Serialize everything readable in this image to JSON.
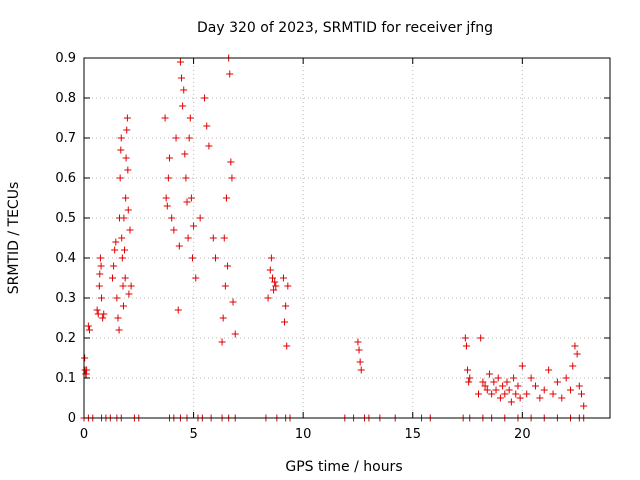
{
  "chart_data": {
    "type": "scatter",
    "title": "Day 320 of 2023, SRMTID for receiver jfng",
    "xlabel": "GPS time / hours",
    "ylabel": "SRMTID / TECUs",
    "xlim": [
      0,
      24
    ],
    "ylim": [
      0,
      0.9
    ],
    "xticks": [
      0,
      5,
      10,
      15,
      20
    ],
    "xtick_labels": [
      "0",
      "5",
      "10",
      "15",
      "20"
    ],
    "yticks": [
      0,
      0.1,
      0.2,
      0.3,
      0.4,
      0.5,
      0.6,
      0.7,
      0.8,
      0.9
    ],
    "ytick_labels": [
      "0",
      "0.1",
      "0.2",
      "0.3",
      "0.4",
      "0.5",
      "0.6",
      "0.7",
      "0.8",
      "0.9"
    ],
    "grid": true,
    "marker": "+",
    "marker_color": "#e00000",
    "series": [
      {
        "name": "SRMTID",
        "x": [
          0.03,
          0.05,
          0.08,
          0.1,
          0.12,
          0.2,
          0.25,
          0.6,
          0.65,
          0.7,
          0.72,
          0.75,
          0.78,
          0.8,
          0.85,
          0.9,
          1.3,
          1.35,
          1.4,
          1.45,
          1.5,
          1.55,
          1.6,
          1.62,
          1.65,
          1.68,
          1.7,
          1.72,
          1.75,
          1.78,
          1.8,
          1.82,
          1.85,
          1.88,
          1.9,
          1.92,
          1.95,
          1.98,
          2.0,
          2.02,
          2.05,
          2.1,
          2.15,
          3.7,
          3.75,
          3.8,
          3.85,
          3.9,
          4.0,
          4.1,
          4.2,
          4.3,
          4.35,
          4.4,
          4.45,
          4.5,
          4.55,
          4.6,
          4.65,
          4.7,
          4.75,
          4.8,
          4.85,
          4.9,
          4.95,
          5.0,
          5.1,
          5.3,
          5.5,
          5.6,
          5.7,
          5.9,
          6.0,
          6.3,
          6.35,
          6.4,
          6.45,
          6.5,
          6.55,
          6.6,
          6.65,
          6.7,
          6.75,
          6.8,
          6.9,
          8.4,
          8.5,
          8.55,
          8.6,
          8.65,
          8.7,
          8.75,
          9.1,
          9.15,
          9.2,
          9.25,
          9.3,
          12.5,
          12.55,
          12.6,
          12.65,
          17.4,
          17.45,
          17.5,
          17.55,
          17.6,
          18.0,
          18.1,
          18.2,
          18.3,
          18.4,
          18.5,
          18.6,
          18.7,
          18.8,
          18.9,
          19.0,
          19.1,
          19.2,
          19.3,
          19.4,
          19.5,
          19.6,
          19.7,
          19.8,
          19.9,
          20.0,
          20.2,
          20.4,
          20.6,
          20.8,
          21.0,
          21.2,
          21.4,
          21.6,
          21.8,
          22.0,
          22.2,
          22.3,
          22.4,
          22.5,
          22.6,
          22.7,
          22.8,
          0.0,
          0.2,
          0.4,
          0.8,
          1.0,
          1.2,
          1.5,
          1.7,
          2.3,
          2.5,
          3.9,
          4.1,
          4.4,
          4.7,
          5.2,
          5.4,
          5.8,
          6.3,
          6.6,
          6.9,
          8.3,
          8.8,
          9.2,
          9.4,
          11.9,
          12.3,
          12.8,
          13.0,
          13.5,
          14.2,
          15.4,
          15.8,
          17.3,
          17.6,
          18.2,
          18.6,
          19.2,
          19.8,
          20.4,
          21.0,
          21.6,
          22.2,
          22.6,
          22.8
        ],
        "y": [
          0.15,
          0.12,
          0.11,
          0.11,
          0.12,
          0.23,
          0.22,
          0.27,
          0.26,
          0.33,
          0.36,
          0.4,
          0.38,
          0.3,
          0.25,
          0.26,
          0.35,
          0.38,
          0.42,
          0.44,
          0.3,
          0.25,
          0.22,
          0.5,
          0.6,
          0.67,
          0.7,
          0.45,
          0.4,
          0.33,
          0.28,
          0.5,
          0.42,
          0.35,
          0.55,
          0.65,
          0.72,
          0.75,
          0.62,
          0.52,
          0.31,
          0.47,
          0.33,
          0.75,
          0.55,
          0.53,
          0.6,
          0.65,
          0.5,
          0.47,
          0.7,
          0.27,
          0.43,
          0.89,
          0.85,
          0.78,
          0.82,
          0.66,
          0.6,
          0.54,
          0.45,
          0.7,
          0.75,
          0.55,
          0.4,
          0.48,
          0.35,
          0.5,
          0.8,
          0.73,
          0.68,
          0.45,
          0.4,
          0.19,
          0.25,
          0.45,
          0.33,
          0.55,
          0.38,
          0.9,
          0.86,
          0.64,
          0.6,
          0.29,
          0.21,
          0.3,
          0.37,
          0.4,
          0.35,
          0.32,
          0.34,
          0.33,
          0.35,
          0.24,
          0.28,
          0.18,
          0.33,
          0.19,
          0.17,
          0.14,
          0.12,
          0.2,
          0.18,
          0.12,
          0.09,
          0.1,
          0.06,
          0.2,
          0.09,
          0.08,
          0.07,
          0.11,
          0.06,
          0.09,
          0.07,
          0.1,
          0.05,
          0.08,
          0.06,
          0.09,
          0.07,
          0.04,
          0.1,
          0.06,
          0.08,
          0.05,
          0.13,
          0.06,
          0.1,
          0.08,
          0.05,
          0.07,
          0.12,
          0.06,
          0.09,
          0.05,
          0.1,
          0.07,
          0.13,
          0.18,
          0.16,
          0.08,
          0.06,
          0.03,
          0,
          0,
          0,
          0,
          0,
          0,
          0,
          0,
          0,
          0,
          0,
          0,
          0,
          0,
          0,
          0,
          0,
          0,
          0,
          0,
          0,
          0,
          0,
          0,
          0,
          0,
          0,
          0,
          0,
          0,
          0,
          0,
          0,
          0,
          0,
          0,
          0,
          0,
          0,
          0,
          0,
          0,
          0,
          0
        ]
      }
    ]
  }
}
